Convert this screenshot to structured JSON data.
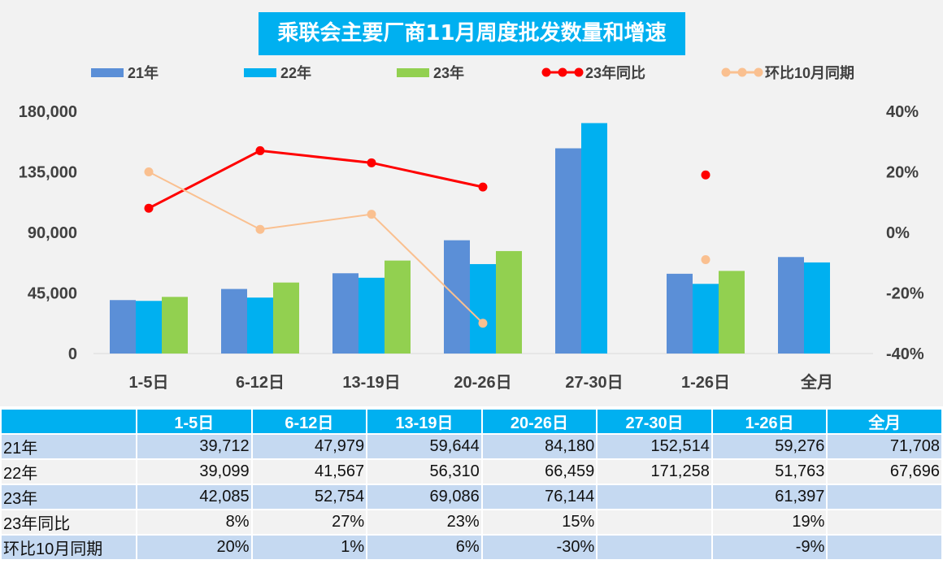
{
  "chart_data": {
    "type": "bar",
    "title": "乘联会主要厂商11月周度批发数量和增速",
    "categories": [
      "1-5日",
      "6-12日",
      "13-19日",
      "20-26日",
      "27-30日",
      "1-26日",
      "全月"
    ],
    "series": [
      {
        "name": "21年",
        "type": "bar",
        "axis": "left",
        "color": "#5B8FD7",
        "values": [
          39712,
          47979,
          59644,
          84180,
          152514,
          59276,
          71708
        ]
      },
      {
        "name": "22年",
        "type": "bar",
        "axis": "left",
        "color": "#00B0F0",
        "values": [
          39099,
          41567,
          56310,
          66459,
          171258,
          51763,
          67696
        ]
      },
      {
        "name": "23年",
        "type": "bar",
        "axis": "left",
        "color": "#92D050",
        "values": [
          42085,
          52754,
          69086,
          76144,
          null,
          61397,
          null
        ]
      },
      {
        "name": "23年同比",
        "type": "line",
        "axis": "right",
        "color": "#FF0000",
        "values": [
          0.08,
          0.27,
          0.23,
          0.15,
          null,
          0.19,
          null
        ]
      },
      {
        "name": "环比10月同期",
        "type": "line",
        "axis": "right",
        "color": "#FAC090",
        "values": [
          0.2,
          0.01,
          0.06,
          -0.3,
          null,
          -0.09,
          null
        ]
      }
    ],
    "ylim": [
      0,
      180000
    ],
    "yticks": [
      "0",
      "45,000",
      "90,000",
      "135,000",
      "180,000"
    ],
    "y2lim": [
      -0.4,
      0.4
    ],
    "y2ticks": [
      "-40%",
      "-20%",
      "0%",
      "20%",
      "40%"
    ],
    "legend": "top",
    "grid": false
  },
  "table": {
    "headers": [
      "",
      "1-5日",
      "6-12日",
      "13-19日",
      "20-26日",
      "27-30日",
      "1-26日",
      "全月"
    ],
    "rows": [
      [
        "21年",
        "39,712",
        "47,979",
        "59,644",
        "84,180",
        "152,514",
        "59,276",
        "71,708"
      ],
      [
        "22年",
        "39,099",
        "41,567",
        "56,310",
        "66,459",
        "171,258",
        "51,763",
        "67,696"
      ],
      [
        "23年",
        "42,085",
        "52,754",
        "69,086",
        "76,144",
        "",
        "61,397",
        ""
      ],
      [
        "23年同比",
        "8%",
        "27%",
        "23%",
        "15%",
        "",
        "19%",
        ""
      ],
      [
        "环比10月同期",
        "20%",
        "1%",
        "6%",
        "-30%",
        "",
        "-9%",
        ""
      ]
    ]
  }
}
